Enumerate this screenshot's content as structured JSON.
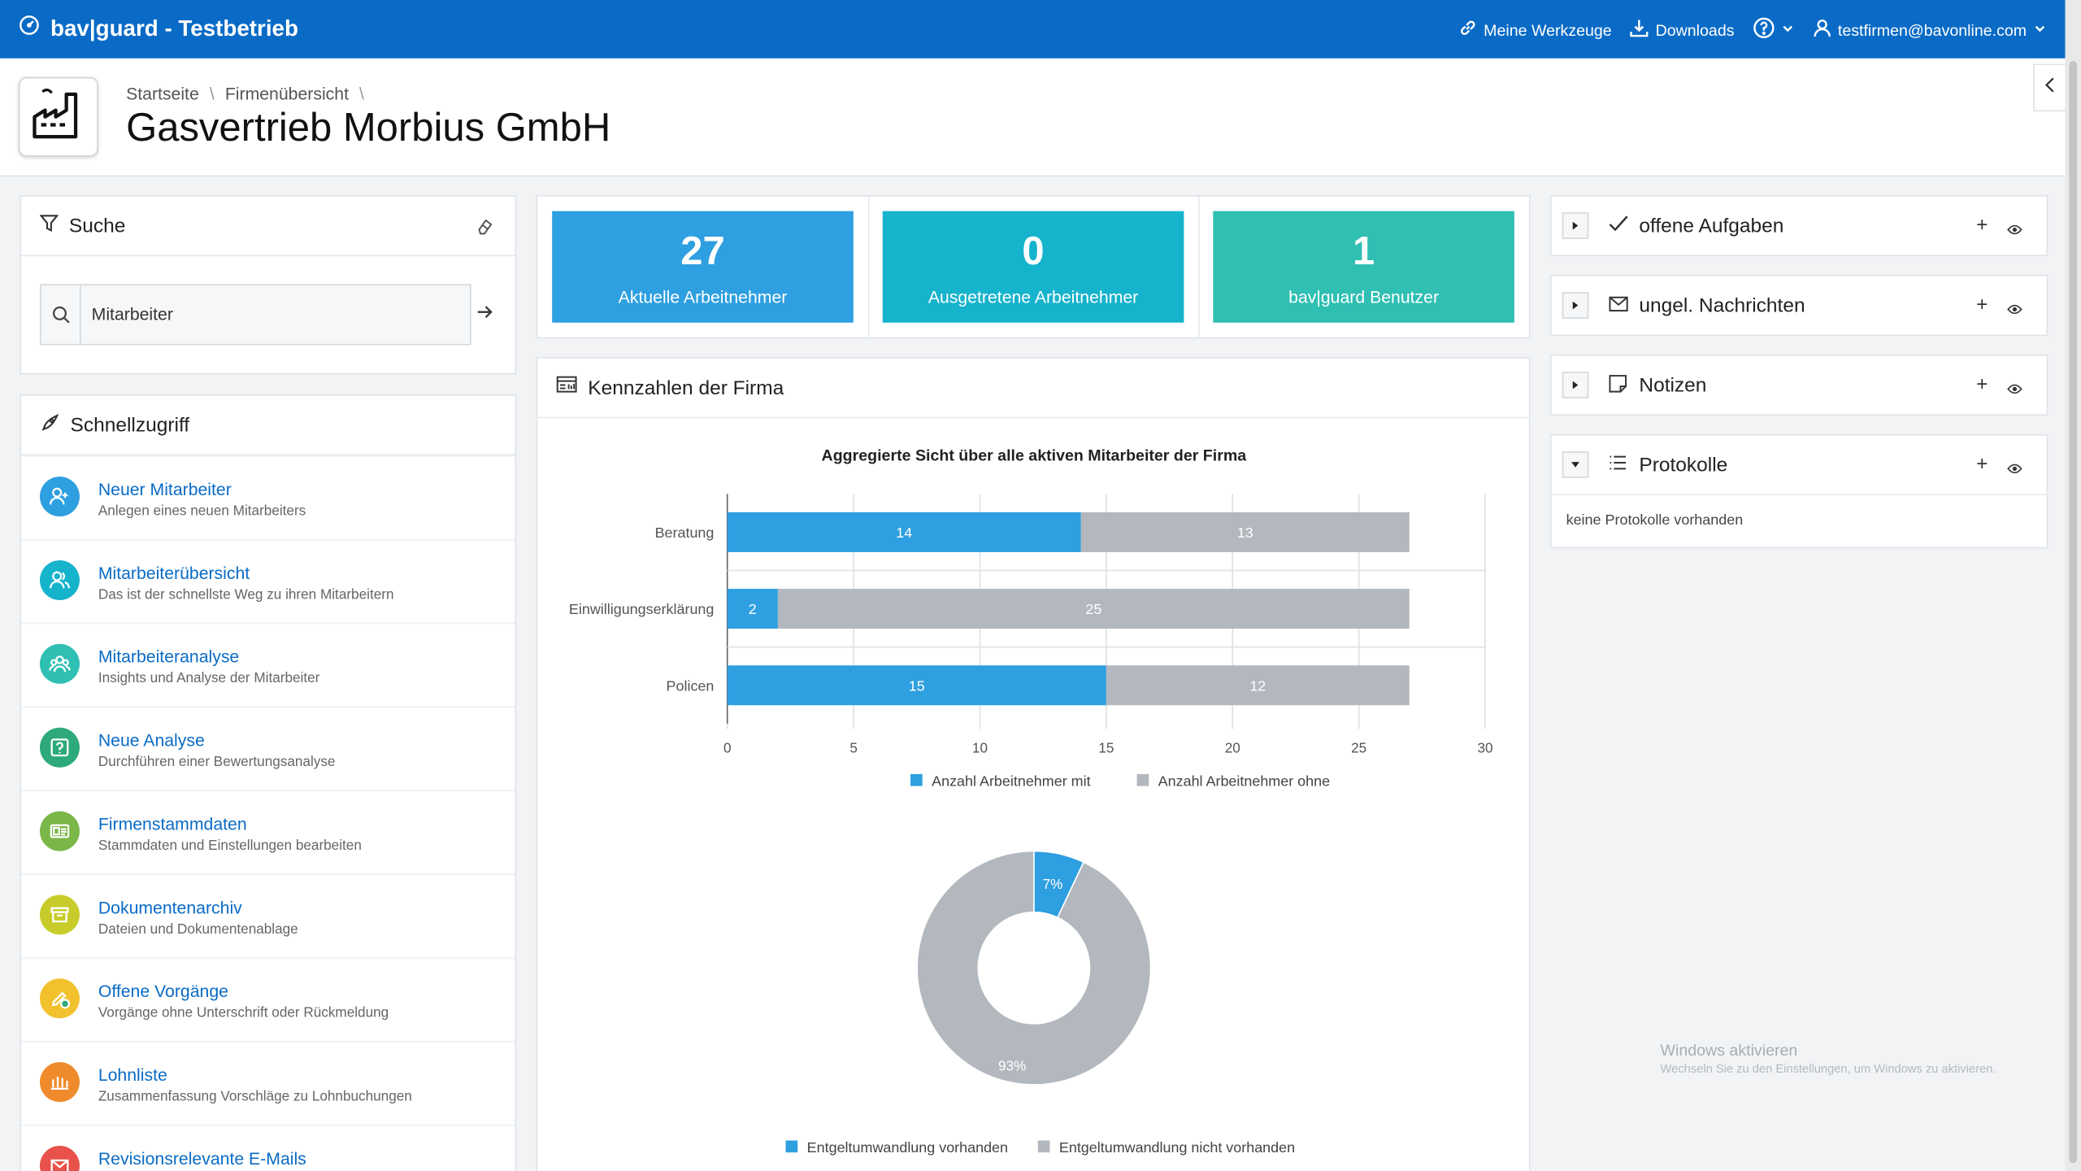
{
  "app": {
    "title": "bav|guard - Testbetrieb"
  },
  "topnav": {
    "tools": "Meine Werkzeuge",
    "downloads": "Downloads",
    "user": "testfirmen@bavonline.com"
  },
  "breadcrumb": [
    "Startseite",
    "Firmenübersicht"
  ],
  "page": {
    "title": "Gasvertrieb Morbius GmbH"
  },
  "search": {
    "heading": "Suche",
    "value": "Mitarbeiter"
  },
  "quick": {
    "heading": "Schnellzugriff",
    "items": [
      {
        "title": "Neuer Mitarbeiter",
        "sub": "Anlegen eines neuen Mitarbeiters",
        "color": "#2e9fe0",
        "icon": "user-plus-icon"
      },
      {
        "title": "Mitarbeiterübersicht",
        "sub": "Das ist der schnellste Weg zu ihren Mitarbeitern",
        "color": "#16b3cc",
        "icon": "users-icon"
      },
      {
        "title": "Mitarbeiteranalyse",
        "sub": "Insights und Analyse der Mitarbeiter",
        "color": "#2fbfb3",
        "icon": "team-icon"
      },
      {
        "title": "Neue Analyse",
        "sub": "Durchführen einer Bewertungsanalyse",
        "color": "#2eaa7a",
        "icon": "question-icon"
      },
      {
        "title": "Firmenstammdaten",
        "sub": "Stammdaten und Einstellungen bearbeiten",
        "color": "#7ab648",
        "icon": "id-card-icon"
      },
      {
        "title": "Dokumentenarchiv",
        "sub": "Dateien und Dokumentenablage",
        "color": "#c8cc2a",
        "icon": "archive-icon"
      },
      {
        "title": "Offene Vorgänge",
        "sub": "Vorgänge ohne Unterschrift oder Rückmeldung",
        "color": "#f2c12e",
        "icon": "pen-check-icon"
      },
      {
        "title": "Lohnliste",
        "sub": "Zusammenfassung Vorschläge zu Lohnbuchungen",
        "color": "#ef8b2c",
        "icon": "money-icon"
      },
      {
        "title": "Revisionsrelevante E-Mails",
        "sub": "",
        "color": "#e8524a",
        "icon": "mail-icon"
      }
    ]
  },
  "kpis": [
    {
      "value": "27",
      "label": "Aktuelle Arbeitnehmer",
      "color": "#2e9fe0"
    },
    {
      "value": "0",
      "label": "Ausgetretene Arbeitnehmer",
      "color": "#16b3cc"
    },
    {
      "value": "1",
      "label": "bav|guard Benutzer",
      "color": "#2fbfb3"
    }
  ],
  "kennzahlen": {
    "heading": "Kennzahlen der Firma"
  },
  "chart_data": [
    {
      "type": "bar",
      "orientation": "horizontal",
      "stacked": true,
      "title": "Aggregierte Sicht über alle aktiven Mitarbeiter der Firma",
      "categories": [
        "Beratung",
        "Einwilligungserklärung",
        "Policen"
      ],
      "series": [
        {
          "name": "Anzahl Arbeitnehmer mit",
          "values": [
            14,
            2,
            15
          ],
          "color": "#2e9fe0"
        },
        {
          "name": "Anzahl Arbeitnehmer ohne",
          "values": [
            13,
            25,
            12
          ],
          "color": "#b3b8bf"
        }
      ],
      "xlim": [
        0,
        30
      ],
      "xticks": [
        0,
        5,
        10,
        15,
        20,
        25,
        30
      ],
      "grid": true,
      "legend": "bottom"
    },
    {
      "type": "pie",
      "donut": true,
      "labels": [
        "Entgeltumwandlung vorhanden",
        "Entgeltumwandlung nicht vorhanden"
      ],
      "values": [
        7,
        93
      ],
      "value_labels": [
        "7%",
        "93%"
      ],
      "colors": [
        "#2e9fe0",
        "#b3b8bf"
      ],
      "legend": "bottom"
    }
  ],
  "right": {
    "aufgaben": "offene Aufgaben",
    "nachrichten": "ungel. Nachrichten",
    "notizen": "Notizen",
    "protokolle": "Protokolle",
    "protokolle_empty": "keine Protokolle vorhanden"
  },
  "watermark": {
    "title": "Windows aktivieren",
    "sub": "Wechseln Sie zu den Einstellungen, um Windows zu aktivieren."
  }
}
